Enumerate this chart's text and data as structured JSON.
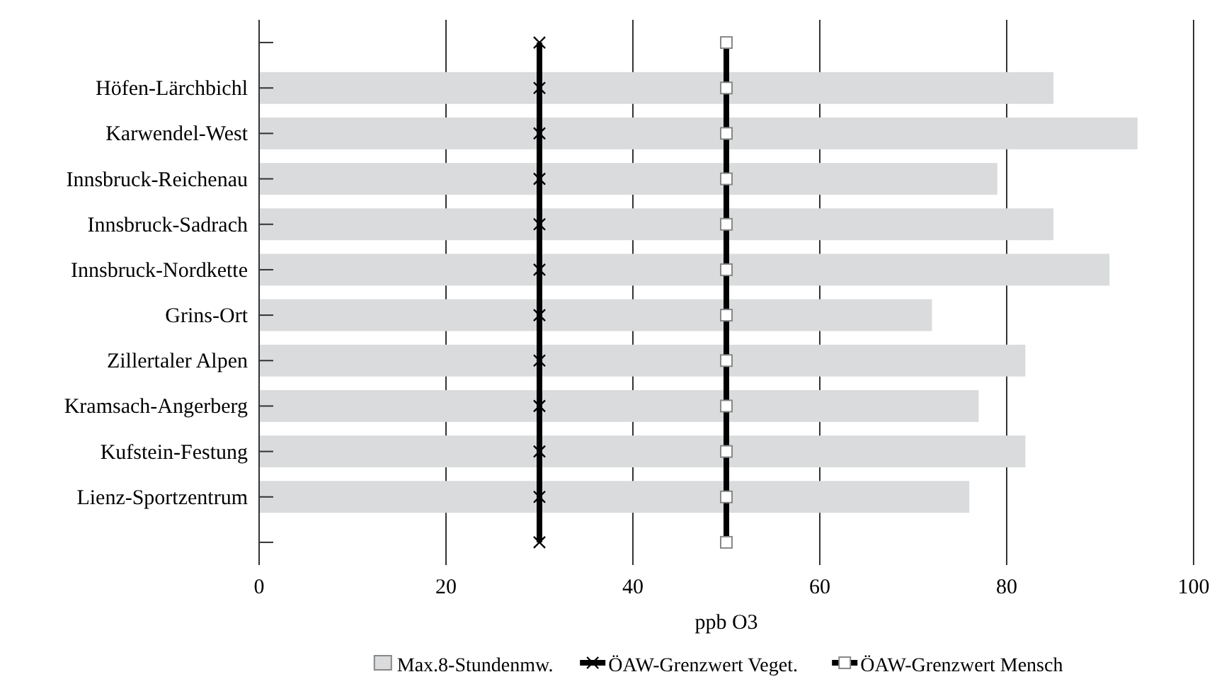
{
  "chart_data": {
    "type": "bar",
    "orientation": "horizontal",
    "xlabel": "ppb O3",
    "categories": [
      null,
      "Höfen-Lärchbichl",
      "Karwendel-West",
      "Innsbruck-Reichenau",
      "Innsbruck-Sadrach",
      "Innsbruck-Nordkette",
      "Grins-Ort",
      "Zillertaler Alpen",
      "Kramsach-Angerberg",
      "Kufstein-Festung",
      "Lienz-Sportzentrum",
      null
    ],
    "series": [
      {
        "name": "Max.8-Stundenmw.",
        "color": "#d9dbdc",
        "values": [
          null,
          85,
          94,
          79,
          85,
          91,
          72,
          82,
          77,
          82,
          76,
          null
        ]
      },
      {
        "name": "ÖAW-Grenzwert Veget.",
        "type": "line",
        "marker": "cross",
        "color": "#000000",
        "values": [
          30,
          30,
          30,
          30,
          30,
          30,
          30,
          30,
          30,
          30,
          30,
          30
        ]
      },
      {
        "name": "ÖAW-Grenzwert Mensch",
        "type": "line",
        "marker": "square",
        "color": "#000000",
        "values": [
          50,
          50,
          50,
          50,
          50,
          50,
          50,
          50,
          50,
          50,
          50,
          50
        ]
      }
    ],
    "xlim": [
      0,
      100
    ],
    "xticks": [
      0,
      20,
      40,
      60,
      80,
      100
    ],
    "grid": "x",
    "legend": "bottom"
  }
}
